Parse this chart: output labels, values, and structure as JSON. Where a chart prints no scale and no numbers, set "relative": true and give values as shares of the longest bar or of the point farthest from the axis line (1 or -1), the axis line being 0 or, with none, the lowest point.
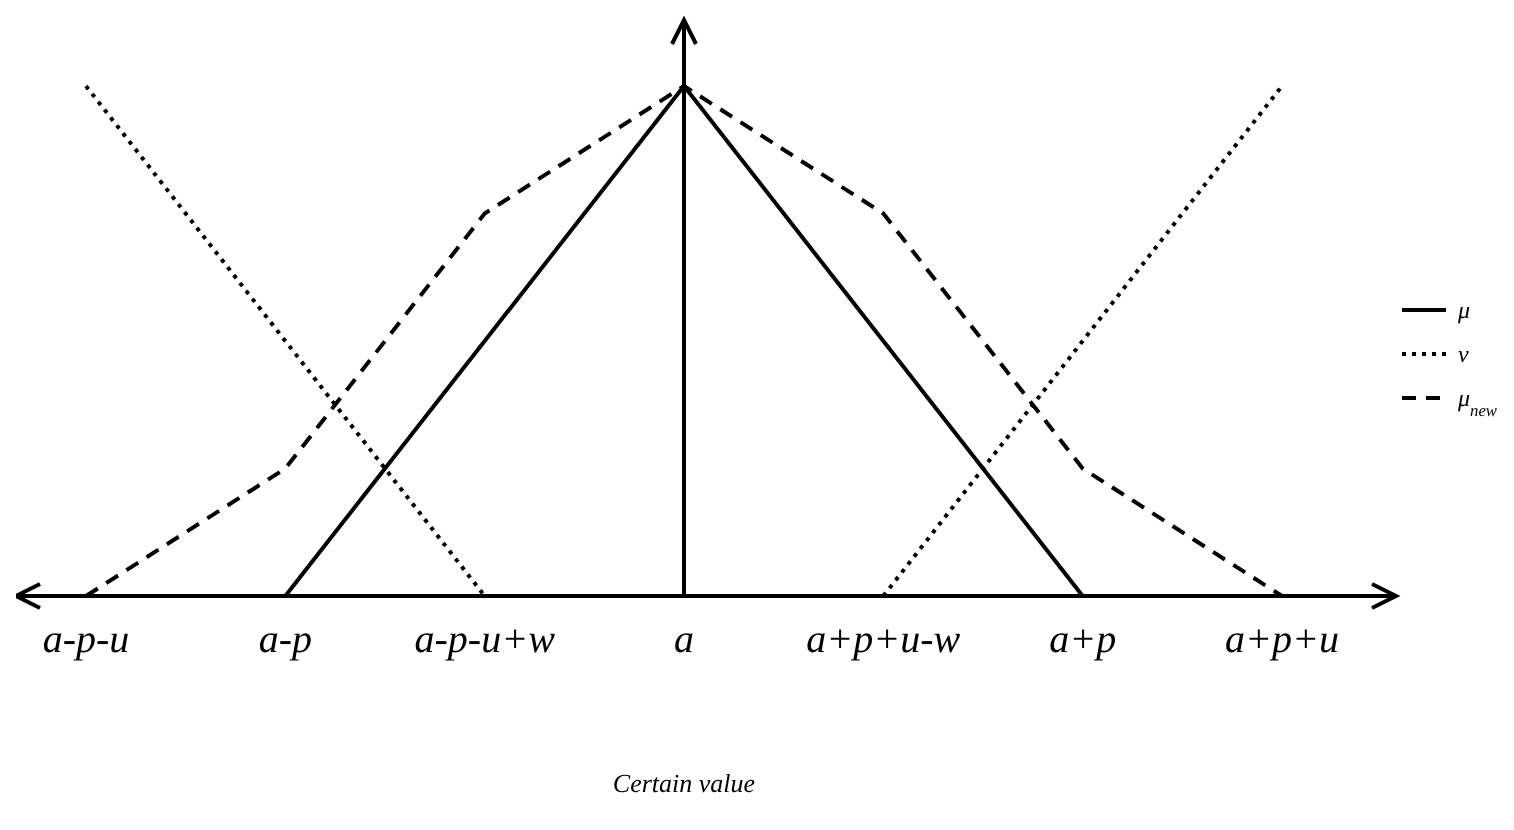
{
  "chart_data": {
    "type": "line",
    "relative": true,
    "xlabel": "Certain value",
    "categories": [
      "a-p-u",
      "a-p",
      "a-p-u+w",
      "a",
      "a+p+u-w",
      "a+p",
      "a+p+u"
    ],
    "series": [
      {
        "name": "μ",
        "color": "#000000",
        "line_style": "solid",
        "values": [
          null,
          0,
          0.5,
          1,
          0.5,
          0,
          null
        ]
      },
      {
        "name": "ν",
        "color": "#000000",
        "line_style": "dotted",
        "values": [
          1,
          0.5,
          0,
          null,
          0,
          0.5,
          1
        ]
      },
      {
        "name": "μ$_{new}$",
        "color": "#000000",
        "line_style": "dashed",
        "values": [
          0,
          0.25,
          0.75,
          1,
          0.75,
          0.25,
          0
        ]
      }
    ],
    "ref_lines": [
      {
        "axis": "x",
        "value": "a",
        "color": "#000000"
      }
    ],
    "legend": "right",
    "marker": "none"
  }
}
